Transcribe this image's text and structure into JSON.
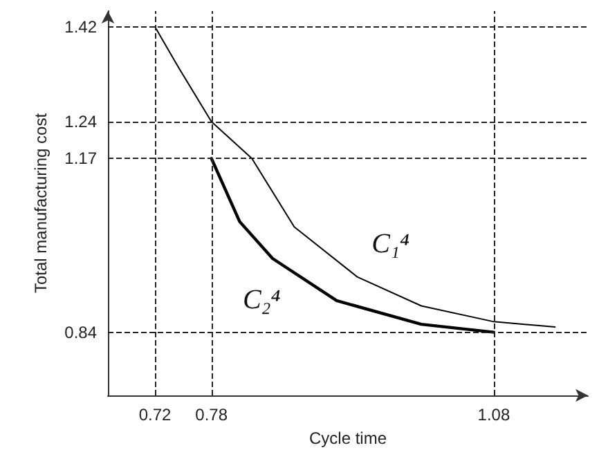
{
  "chart_data": {
    "type": "line",
    "xlabel": "Cycle time",
    "ylabel": "Total manufacturing cost",
    "xlim": [
      0.67,
      1.18
    ],
    "ylim": [
      0.72,
      1.45
    ],
    "xticks": [
      0.72,
      0.78,
      1.08
    ],
    "yticks": [
      0.84,
      1.17,
      1.24,
      1.42
    ],
    "grid": false,
    "marker": "none",
    "line_style": "solid",
    "series": [
      {
        "color": "#000000",
        "x": [
          0.72,
          0.746,
          0.78,
          0.823,
          0.868,
          0.935,
          1.003,
          1.08,
          1.145
        ],
        "values": [
          1.42,
          1.34,
          1.24,
          1.17,
          1.04,
          0.945,
          0.89,
          0.86,
          0.85
        ]
      },
      {
        "color": "#000000",
        "x": [
          0.78,
          0.81,
          0.845,
          0.913,
          1.003,
          1.08
        ],
        "values": [
          1.17,
          1.05,
          0.98,
          0.9,
          0.855,
          0.84
        ]
      }
    ],
    "ref_lines": [
      {
        "axis": "y",
        "value": 1.42,
        "line_style": "dashed"
      },
      {
        "axis": "y",
        "value": 1.24,
        "line_style": "dashed"
      },
      {
        "axis": "y",
        "value": 1.17,
        "line_style": "dashed"
      },
      {
        "axis": "y",
        "value": 0.84,
        "line_style": "dashed"
      },
      {
        "axis": "x",
        "value": 0.72,
        "line_style": "dashed"
      },
      {
        "axis": "x",
        "value": 0.78,
        "line_style": "dashed"
      },
      {
        "axis": "x",
        "value": 1.08,
        "line_style": "dashed"
      }
    ],
    "annotations": [
      "C₁⁴",
      "C₂⁴"
    ]
  }
}
